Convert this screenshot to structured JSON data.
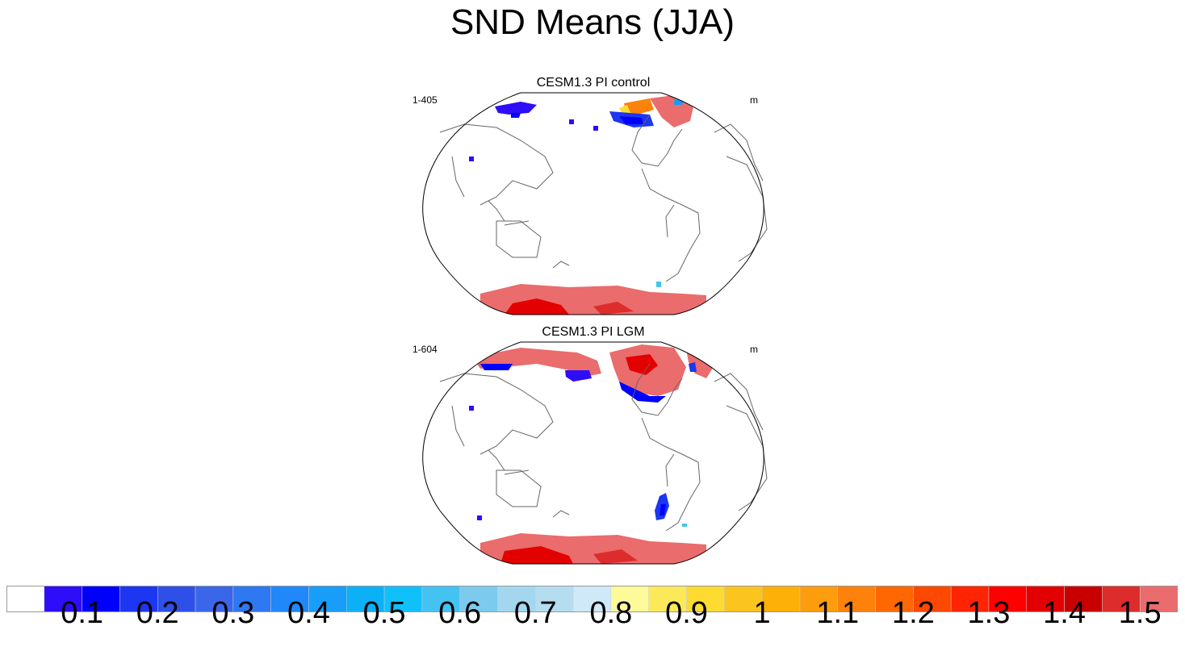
{
  "figure": {
    "title": "SND Means (JJA)"
  },
  "panels": [
    {
      "title": "CESM1.3 PI control",
      "left_string": "1-405",
      "right_string": "m"
    },
    {
      "title": "CESM1.3 PI LGM",
      "left_string": "1-604",
      "right_string": "m"
    }
  ],
  "colorbar": {
    "colors": [
      "#ffffff",
      "#2e0df8",
      "#0000fe",
      "#1c36f2",
      "#2e50e8",
      "#3a66ea",
      "#2e78f2",
      "#2088f8",
      "#189df8",
      "#0cb0f7",
      "#10c0fb",
      "#44c3f3",
      "#7ccbef",
      "#a2d7ef",
      "#b4ddf0",
      "#cfe9f8",
      "#fdfa9a",
      "#fbe95a",
      "#fddb30",
      "#fcc41f",
      "#fdb008",
      "#fd9d0d",
      "#fd820b",
      "#ff6800",
      "#fd4800",
      "#fe2404",
      "#fe0000",
      "#e30000",
      "#c80000",
      "#dc2c2c",
      "#ea6c6c"
    ],
    "labels": [
      "0.1",
      "0.2",
      "0.3",
      "0.4",
      "0.5",
      "0.6",
      "0.7",
      "0.8",
      "0.9",
      "1",
      "1.1",
      "1.2",
      "1.3",
      "1.4",
      "1.5"
    ]
  }
}
